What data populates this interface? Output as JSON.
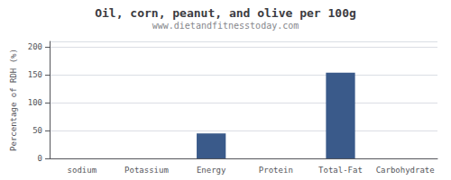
{
  "chart_data": {
    "type": "bar",
    "title": "Oil, corn, peanut, and olive per 100g",
    "subtitle": "www.dietandfitnesstoday.com",
    "ylabel": "Percentage of RDH (%)",
    "categories": [
      "sodium",
      "Potassium",
      "Energy",
      "Protein",
      "Total-Fat",
      "Carbohydrate"
    ],
    "values": [
      0,
      0,
      45,
      0,
      154,
      0
    ],
    "color": "#3a5a8a",
    "ylim": [
      0,
      210
    ],
    "yticks": [
      0,
      50,
      100,
      150,
      200
    ],
    "grid": true
  }
}
